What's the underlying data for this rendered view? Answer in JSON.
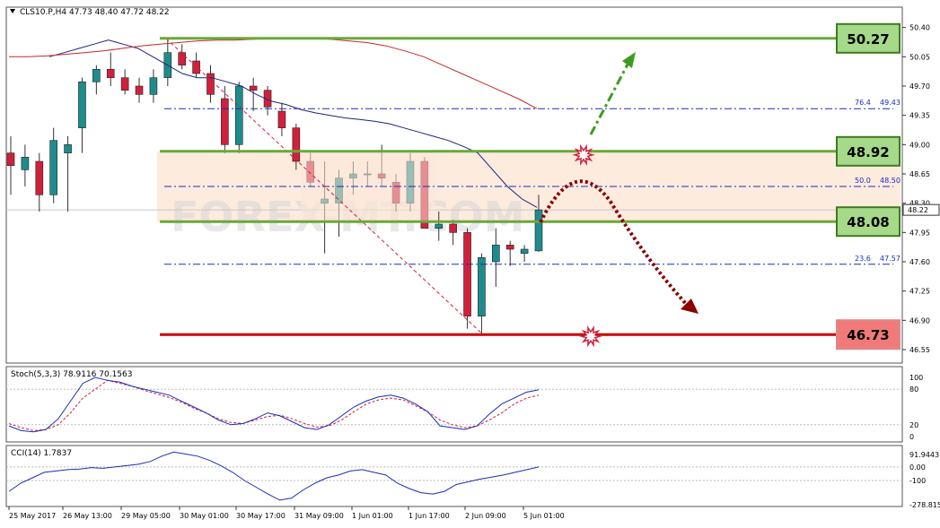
{
  "chart_data": {
    "type": "candlestick",
    "symbol_header": "CLS10.P,H4  47.73 48.40 47.72 48.22",
    "watermark": "FOREX-MT.COM",
    "ylim": [
      46.55,
      50.45
    ],
    "price_ticks": [
      "50.40",
      "50.05",
      "49.70",
      "49.35",
      "49.00",
      "48.65",
      "48.30",
      "47.95",
      "47.60",
      "47.25",
      "46.90",
      "46.55"
    ],
    "current_price": "48.22",
    "x_labels": [
      "25 May 2017",
      "26 May 13:00",
      "29 May 05:00",
      "30 May 01:00",
      "30 May 17:00",
      "31 May 09:00",
      "1 Jun 01:00",
      "1 Jun 17:00",
      "2 Jun 09:00",
      "5 Jun 01:00"
    ],
    "candles": [
      {
        "o": 48.9,
        "h": 49.1,
        "l": 48.4,
        "c": 48.75
      },
      {
        "o": 48.7,
        "h": 49.0,
        "l": 48.5,
        "c": 48.85
      },
      {
        "o": 48.8,
        "h": 48.9,
        "l": 48.2,
        "c": 48.4
      },
      {
        "o": 48.4,
        "h": 49.2,
        "l": 48.3,
        "c": 49.05
      },
      {
        "o": 48.9,
        "h": 49.1,
        "l": 48.2,
        "c": 49.0
      },
      {
        "o": 49.2,
        "h": 49.8,
        "l": 48.9,
        "c": 49.75
      },
      {
        "o": 49.75,
        "h": 49.95,
        "l": 49.6,
        "c": 49.9
      },
      {
        "o": 49.9,
        "h": 50.1,
        "l": 49.7,
        "c": 49.8
      },
      {
        "o": 49.8,
        "h": 49.9,
        "l": 49.6,
        "c": 49.65
      },
      {
        "o": 49.7,
        "h": 49.8,
        "l": 49.5,
        "c": 49.6
      },
      {
        "o": 49.6,
        "h": 49.9,
        "l": 49.5,
        "c": 49.8
      },
      {
        "o": 49.8,
        "h": 50.25,
        "l": 49.7,
        "c": 50.1
      },
      {
        "o": 50.1,
        "h": 50.2,
        "l": 49.9,
        "c": 49.95
      },
      {
        "o": 50.0,
        "h": 50.1,
        "l": 49.8,
        "c": 49.85
      },
      {
        "o": 49.85,
        "h": 49.95,
        "l": 49.5,
        "c": 49.6
      },
      {
        "o": 49.55,
        "h": 49.7,
        "l": 48.9,
        "c": 49.0
      },
      {
        "o": 49.0,
        "h": 49.75,
        "l": 48.9,
        "c": 49.7
      },
      {
        "o": 49.7,
        "h": 49.8,
        "l": 49.4,
        "c": 49.65
      },
      {
        "o": 49.65,
        "h": 49.7,
        "l": 49.35,
        "c": 49.45
      },
      {
        "o": 49.4,
        "h": 49.5,
        "l": 49.1,
        "c": 49.2
      },
      {
        "o": 49.2,
        "h": 49.25,
        "l": 48.7,
        "c": 48.8
      },
      {
        "o": 48.8,
        "h": 48.9,
        "l": 48.5,
        "c": 48.55
      },
      {
        "o": 48.3,
        "h": 48.8,
        "l": 47.7,
        "c": 48.35
      },
      {
        "o": 48.3,
        "h": 48.7,
        "l": 47.9,
        "c": 48.6
      },
      {
        "o": 48.6,
        "h": 48.8,
        "l": 48.4,
        "c": 48.65
      },
      {
        "o": 48.65,
        "h": 48.8,
        "l": 48.5,
        "c": 48.65
      },
      {
        "o": 48.65,
        "h": 49.0,
        "l": 48.5,
        "c": 48.6
      },
      {
        "o": 48.55,
        "h": 48.65,
        "l": 48.2,
        "c": 48.3
      },
      {
        "o": 48.3,
        "h": 48.9,
        "l": 48.2,
        "c": 48.8
      },
      {
        "o": 48.8,
        "h": 48.85,
        "l": 48.0,
        "c": 48.0
      },
      {
        "o": 48.0,
        "h": 48.2,
        "l": 47.85,
        "c": 48.05
      },
      {
        "o": 48.05,
        "h": 48.1,
        "l": 47.8,
        "c": 47.95
      },
      {
        "o": 47.95,
        "h": 48.0,
        "l": 46.8,
        "c": 46.95
      },
      {
        "o": 46.95,
        "h": 47.7,
        "l": 46.73,
        "c": 47.65
      },
      {
        "o": 47.6,
        "h": 48.0,
        "l": 47.3,
        "c": 47.8
      },
      {
        "o": 47.8,
        "h": 47.85,
        "l": 47.55,
        "c": 47.75
      },
      {
        "o": 47.7,
        "h": 47.8,
        "l": 47.6,
        "c": 47.75
      },
      {
        "o": 47.73,
        "h": 48.4,
        "l": 47.72,
        "c": 48.22
      }
    ],
    "levels": [
      {
        "value": 50.27,
        "label": "50.27",
        "kind": "green"
      },
      {
        "value": 48.92,
        "label": "48.92",
        "kind": "green"
      },
      {
        "value": 48.08,
        "label": "48.08",
        "kind": "green"
      },
      {
        "value": 46.73,
        "label": "46.73",
        "kind": "red"
      }
    ],
    "fibonacci": [
      {
        "level": "76.4",
        "price": "49.43",
        "value": 49.43
      },
      {
        "level": "50.0",
        "price": "48.50",
        "value": 48.5
      },
      {
        "level": "23.6",
        "price": "47.57",
        "value": 47.57
      }
    ],
    "resistance_zone": [
      48.08,
      48.92
    ],
    "fast_ma": [
      50.05,
      50.1,
      50.15,
      50.2,
      50.25,
      50.2,
      50.15,
      50.05,
      49.95,
      49.85,
      49.8,
      49.8,
      49.75,
      49.7,
      49.6,
      49.52,
      49.48,
      49.42,
      49.38,
      49.35,
      49.32,
      49.3,
      49.28,
      49.25,
      49.2,
      49.15,
      49.1,
      49.05,
      48.98,
      48.9,
      48.7,
      48.5,
      48.35,
      48.25
    ],
    "slow_ma": [
      50.05,
      50.05,
      50.06,
      50.08,
      50.1,
      50.12,
      50.15,
      50.18,
      50.2,
      50.22,
      50.24,
      50.25,
      50.25,
      50.26,
      50.27,
      50.27,
      50.27,
      50.26,
      50.24,
      50.22,
      50.18,
      50.12,
      50.05,
      49.95,
      49.85,
      49.75,
      49.65,
      49.55,
      49.43
    ],
    "stoch": {
      "label": "Stoch(5,3,3) 78.9116 70.1563",
      "ticks": [
        "100",
        "80",
        "20",
        "0"
      ],
      "main": [
        18,
        10,
        8,
        12,
        30,
        60,
        90,
        100,
        95,
        92,
        85,
        80,
        75,
        70,
        60,
        50,
        40,
        28,
        20,
        22,
        30,
        40,
        35,
        25,
        15,
        12,
        20,
        35,
        50,
        60,
        67,
        70,
        65,
        55,
        42,
        18,
        15,
        12,
        18,
        38,
        55,
        65,
        75,
        79
      ],
      "signal": [
        22,
        15,
        10,
        12,
        20,
        40,
        65,
        80,
        95,
        90,
        85,
        78,
        72,
        66,
        58,
        48,
        40,
        30,
        24,
        22,
        28,
        34,
        36,
        30,
        22,
        16,
        18,
        28,
        42,
        55,
        62,
        65,
        62,
        52,
        42,
        28,
        20,
        15,
        18,
        28,
        40,
        55,
        65,
        70
      ]
    },
    "cci": {
      "label": "CCI(14) 1.7837",
      "ticks": [
        "91.9443",
        "0.00",
        "-100",
        "-278.815"
      ],
      "values": [
        -180,
        -120,
        -80,
        -40,
        -30,
        -20,
        -15,
        -5,
        -10,
        0,
        10,
        20,
        40,
        80,
        110,
        95,
        80,
        50,
        10,
        -40,
        -100,
        -150,
        -200,
        -245,
        -230,
        -170,
        -120,
        -80,
        -60,
        -30,
        -20,
        -40,
        -60,
        -120,
        -160,
        -190,
        -200,
        -180,
        -130,
        -110,
        -90,
        -75,
        -60,
        -40,
        -20,
        0
      ]
    },
    "arrows": {
      "up_color": "#3c9c1e",
      "down_color": "#8b0000"
    }
  }
}
